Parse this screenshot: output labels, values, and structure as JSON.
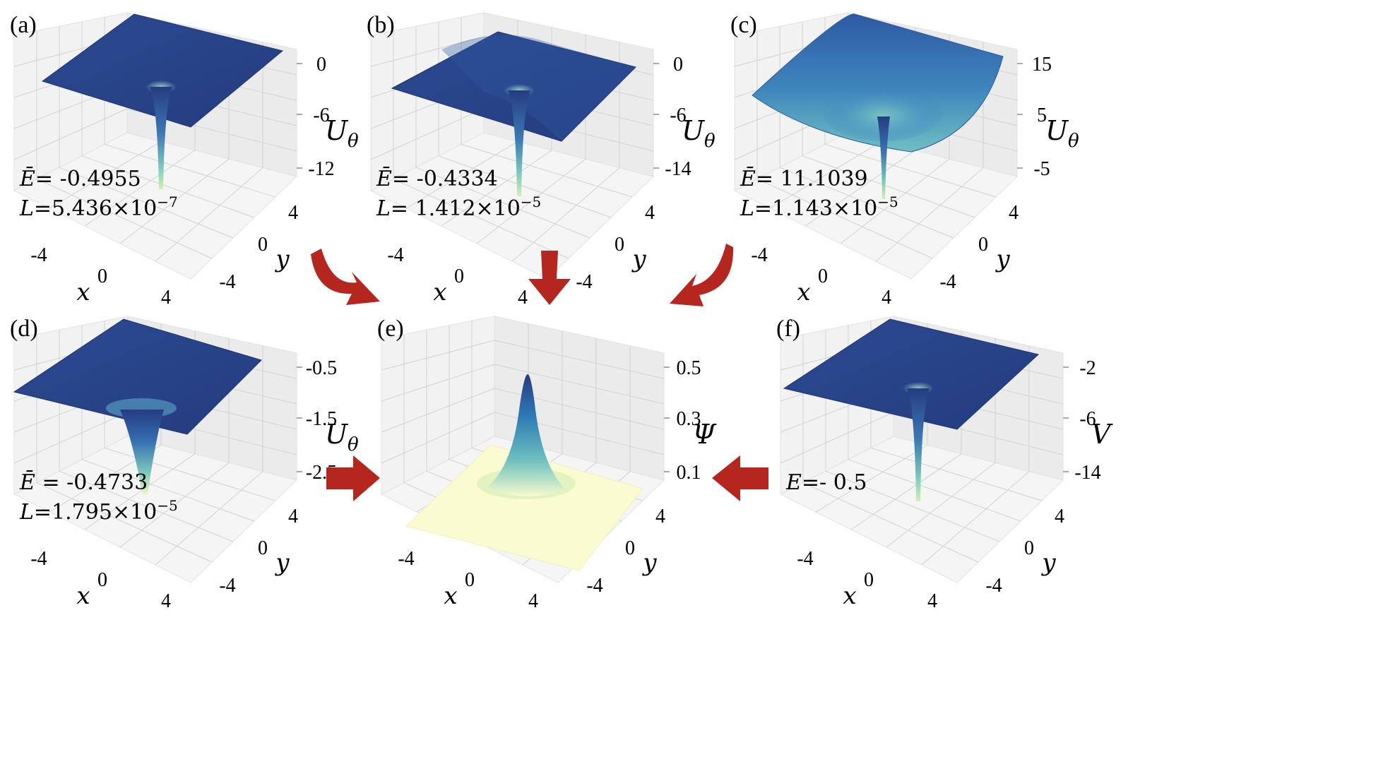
{
  "chart_data": [
    {
      "panel": "(a)",
      "type": "surface3d",
      "title": "",
      "xlabel": "x",
      "ylabel": "y",
      "zlabel": "U",
      "zlabel_sub": "θ",
      "x_ticks": [
        "-4",
        "0",
        "4"
      ],
      "y_ticks": [
        "-4",
        "0",
        "4"
      ],
      "z_ticks": [
        "0",
        "-6",
        "-12"
      ],
      "zlim": [
        -14,
        1
      ],
      "well_min": -14,
      "annotation_lines": [
        {
          "var": "Ē",
          "text": "= -0.4955"
        },
        {
          "var": "L",
          "text": "=5.436×10",
          "sup": "−7"
        }
      ]
    },
    {
      "panel": "(b)",
      "type": "surface3d",
      "title": "",
      "xlabel": "x",
      "ylabel": "y",
      "zlabel": "U",
      "zlabel_sub": "θ",
      "x_ticks": [
        "-4",
        "0",
        "4"
      ],
      "y_ticks": [
        "-4",
        "0",
        "4"
      ],
      "z_ticks": [
        "0",
        "-6",
        "-14"
      ],
      "zlim": [
        -15,
        1
      ],
      "well_min": -15,
      "annotation_lines": [
        {
          "var": "Ē",
          "text": "= -0.4334"
        },
        {
          "var": "L",
          "text": "= 1.412×10",
          "sup": "−5"
        }
      ]
    },
    {
      "panel": "(c)",
      "type": "surface3d",
      "title": "",
      "xlabel": "x",
      "ylabel": "y",
      "zlabel": "U",
      "zlabel_sub": "θ",
      "x_ticks": [
        "-4",
        "0",
        "4"
      ],
      "y_ticks": [
        "-4",
        "0",
        "4"
      ],
      "z_ticks": [
        "15",
        "5",
        "-5"
      ],
      "zlim": [
        -8,
        16
      ],
      "well_min": -8,
      "annotation_lines": [
        {
          "var": "Ē",
          "text": "= 11.1039"
        },
        {
          "var": "L",
          "text": "=1.143×10",
          "sup": "−5"
        }
      ]
    },
    {
      "panel": "(d)",
      "type": "surface3d",
      "title": "",
      "xlabel": "x",
      "ylabel": "y",
      "zlabel": "U",
      "zlabel_sub": "θ",
      "x_ticks": [
        "-4",
        "0",
        "4"
      ],
      "y_ticks": [
        "-4",
        "0",
        "4"
      ],
      "z_ticks": [
        "-0.5",
        "-1.5",
        "-2.5"
      ],
      "zlim": [
        -2.7,
        -0.2
      ],
      "well_min": -2.7,
      "annotation_lines": [
        {
          "var": "Ē",
          "text": " = -0.4733"
        },
        {
          "var": "L",
          "text": "=1.795×10",
          "sup": "−5"
        }
      ]
    },
    {
      "panel": "(e)",
      "type": "surface3d",
      "title": "",
      "xlabel": "x",
      "ylabel": "y",
      "zlabel": "Ψ",
      "zlabel_sub": "",
      "x_ticks": [
        "-4",
        "0",
        "4"
      ],
      "y_ticks": [
        "-4",
        "0",
        "4"
      ],
      "z_ticks": [
        "0.5",
        "0.3",
        "0.1"
      ],
      "zlim": [
        0,
        0.55
      ],
      "peak_max": 0.5,
      "annotation_lines": []
    },
    {
      "panel": "(f)",
      "type": "surface3d",
      "title": "",
      "xlabel": "x",
      "ylabel": "y",
      "zlabel": "V",
      "zlabel_sub": "",
      "x_ticks": [
        "-4",
        "0",
        "4"
      ],
      "y_ticks": [
        "-4",
        "0",
        "4"
      ],
      "z_ticks": [
        "-2",
        "-6",
        "-14"
      ],
      "zlim": [
        -16,
        0
      ],
      "well_min": -16,
      "annotation_lines": [
        {
          "var": "E",
          "text": "=- 0.5"
        }
      ]
    }
  ],
  "flow_arrows": [
    "(a)→(e)",
    "(b)→(e)",
    "(c)→(e)",
    "(d)→(e)",
    "(f)→(e)"
  ],
  "colors": {
    "surface_dark": "#283c84",
    "surface_mid": "#3d6fb1",
    "surface_light": "#7fcdbb",
    "surface_pale": "#ffffd9",
    "arrow": "#b5261e",
    "pane": "#f2f2f2",
    "grid": "#d2d2d2"
  }
}
